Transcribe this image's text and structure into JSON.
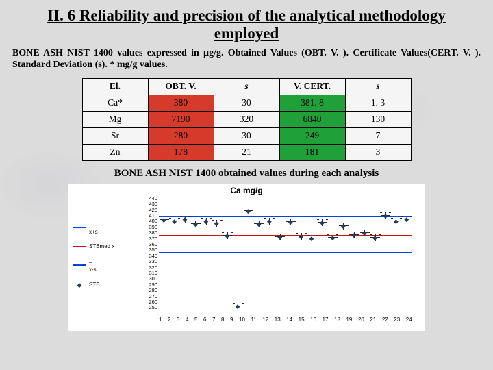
{
  "title": "II. 6 Reliability and precision of the analytical methodology employed",
  "caption": "BONE ASH NIST 1400 values expressed in µg/g. Obtained Values (OBT. V. ). Certificate Values(CERT. V. ). Standard Deviation (s). * mg/g values.",
  "table": {
    "headers": [
      "El.",
      "OBT. V.",
      "s",
      "V.  CERT.",
      "s"
    ],
    "header_italic": [
      false,
      false,
      true,
      false,
      true
    ],
    "rows": [
      {
        "el": "Ca*",
        "obt": "380",
        "s1": "30",
        "cert": "381. 8",
        "s2": "1. 3"
      },
      {
        "el": "Mg",
        "obt": "7190",
        "s1": "320",
        "cert": "6840",
        "s2": "130"
      },
      {
        "el": "Sr",
        "obt": "280",
        "s1": "30",
        "cert": "249",
        "s2": "7"
      },
      {
        "el": "Zn",
        "obt": "178",
        "s1": "21",
        "cert": "181",
        "s2": "3"
      }
    ],
    "obt_colors": [
      "#d63a2a",
      "#d63a2a",
      "#d63a2a",
      "#d63a2a"
    ],
    "cert_colors": [
      "#1fa038",
      "#1fa038",
      "#1fa038",
      "#1fa038"
    ]
  },
  "subcaption": "BONE ASH NIST 1400 obtained values during each analysis",
  "chart": {
    "type": "scatter",
    "title": "Ca mg/g",
    "ylim": [
      250,
      440
    ],
    "ytick_step": 10,
    "xlim": [
      1,
      24
    ],
    "x_categories": [
      "1",
      "2",
      "3",
      "4",
      "5",
      "6",
      "7",
      "8",
      "9",
      "10",
      "11",
      "12",
      "13",
      "14",
      "15",
      "16",
      "17",
      "18",
      "19",
      "20",
      "21",
      "22",
      "23",
      "24"
    ],
    "y_ticks": [
      440,
      430,
      420,
      410,
      400,
      390,
      380,
      370,
      360,
      350,
      340,
      330,
      320,
      310,
      300,
      290,
      280,
      270,
      260,
      250
    ],
    "reference_lines": [
      {
        "label": "_\nx+s",
        "y": 412,
        "color": "#0044dd"
      },
      {
        "label": "STBmed x",
        "y": 380,
        "color": "#c01818"
      },
      {
        "label": "_\nx-s",
        "y": 352,
        "color": "#0044dd"
      }
    ],
    "series_marker": {
      "label": "STB",
      "glyph": "◆",
      "color": "#243a5e"
    },
    "points": [
      {
        "x": 1,
        "y": 405
      },
      {
        "x": 2,
        "y": 402
      },
      {
        "x": 3,
        "y": 406
      },
      {
        "x": 4,
        "y": 398
      },
      {
        "x": 5,
        "y": 403
      },
      {
        "x": 6,
        "y": 399
      },
      {
        "x": 7,
        "y": 379
      },
      {
        "x": 8,
        "y": 262
      },
      {
        "x": 9,
        "y": 420
      },
      {
        "x": 10,
        "y": 398
      },
      {
        "x": 11,
        "y": 402
      },
      {
        "x": 12,
        "y": 376
      },
      {
        "x": 13,
        "y": 401
      },
      {
        "x": 14,
        "y": 378
      },
      {
        "x": 15,
        "y": 374
      },
      {
        "x": 16,
        "y": 400
      },
      {
        "x": 17,
        "y": 375
      },
      {
        "x": 18,
        "y": 395
      },
      {
        "x": 19,
        "y": 380
      },
      {
        "x": 20,
        "y": 383
      },
      {
        "x": 21,
        "y": 375
      },
      {
        "x": 22,
        "y": 412
      },
      {
        "x": 23,
        "y": 402
      },
      {
        "x": 24,
        "y": 406
      }
    ],
    "legend_items": [
      {
        "kind": "line",
        "label": "_\nx+s",
        "color": "#0044dd"
      },
      {
        "kind": "line",
        "label": "STBmed x",
        "color": "#c01818"
      },
      {
        "kind": "line",
        "label": "_\nx-s",
        "color": "#0044dd"
      },
      {
        "kind": "marker",
        "label": "STB",
        "glyph": "◆",
        "color": "#243a5e"
      }
    ],
    "background_color": "#ffffff",
    "title_fontsize": 12,
    "tick_fontsize": 8
  }
}
